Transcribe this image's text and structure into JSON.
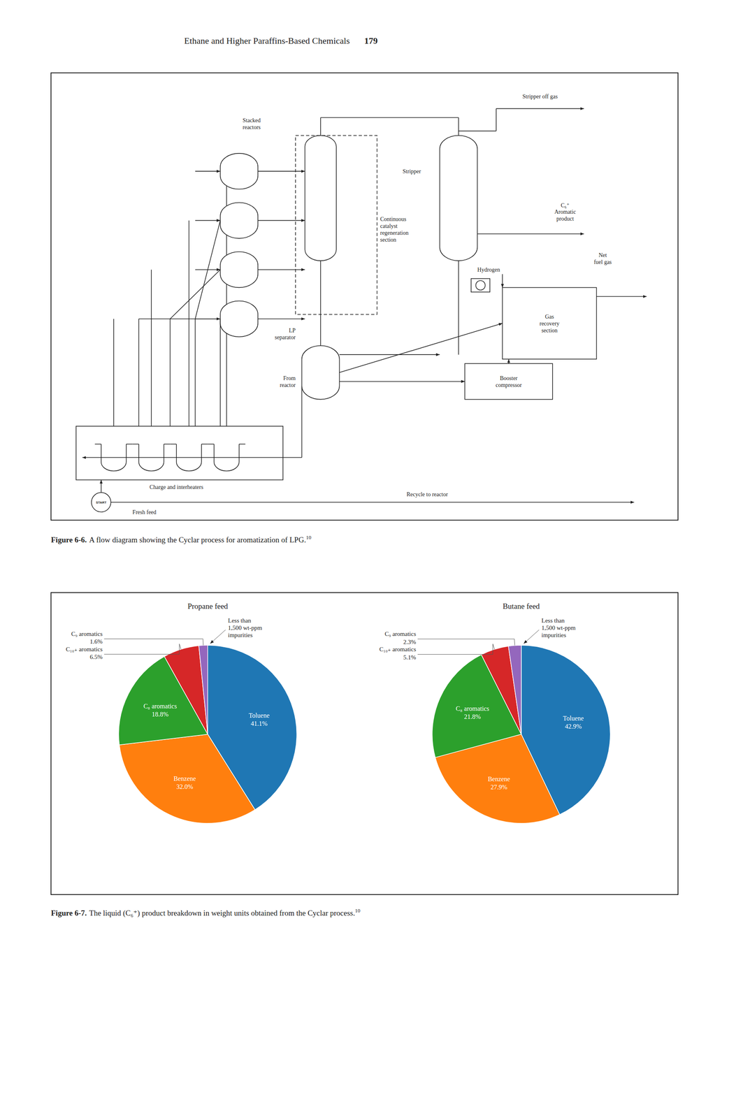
{
  "page_header": "Ethane and Higher Paraffins-Based Chemicals",
  "page_number": "179",
  "chart_data": [
    {
      "type": "diagram",
      "annotations": [
        "Stripper",
        "Stripper off gas",
        "C₆⁺\nAromatic\nproduct",
        "Continuous\ncatalyst\nregeneration\nsection",
        "LP\nseparator",
        "From\nreactor",
        "Stacked\nreactors",
        "Charge and interheaters",
        "START",
        "Fresh feed",
        "Gas\nrecovery\nsection",
        "Hydrogen",
        "Net\nfuel gas",
        "Booster\ncompressor",
        "Recycle to reactor"
      ]
    },
    {
      "type": "pie",
      "title": "Propane feed",
      "categories": [
        "Toluene",
        "Benzene",
        "C₈ aromatics",
        "C₁₀₊ aromatics",
        "C₉ aromatics"
      ],
      "values": [
        41.1,
        32.0,
        18.8,
        6.5,
        1.6
      ],
      "value_labels": [
        "41.1%",
        "32.0%",
        "18.8%",
        "6.5%",
        "1.6%"
      ],
      "data_labels": true,
      "annotations": [
        "Less than\n1,500 wt-ppm\nimpurities"
      ]
    },
    {
      "type": "pie",
      "title": "Butane feed",
      "categories": [
        "Toluene",
        "Benzene",
        "C₈ aromatics",
        "C₁₀₊ aromatics",
        "C₉ aromatics"
      ],
      "values": [
        42.9,
        27.9,
        21.8,
        5.1,
        2.3
      ],
      "value_labels": [
        "42.9%",
        "27.9%",
        "21.8%",
        "5.1%",
        "2.3%"
      ],
      "data_labels": true,
      "annotations": [
        "Less than\n1,500 wt-ppm\nimpurities"
      ]
    }
  ],
  "captions": [
    {
      "label": "Figure 6-6.",
      "text": "A flow diagram showing the Cyclar process for aromatization of LPG.",
      "superscript": "10"
    },
    {
      "label": "Figure 6-7.",
      "text": "The liquid (C₆⁺) product breakdown in weight units obtained from the Cyclar process.",
      "superscript": "10"
    }
  ]
}
